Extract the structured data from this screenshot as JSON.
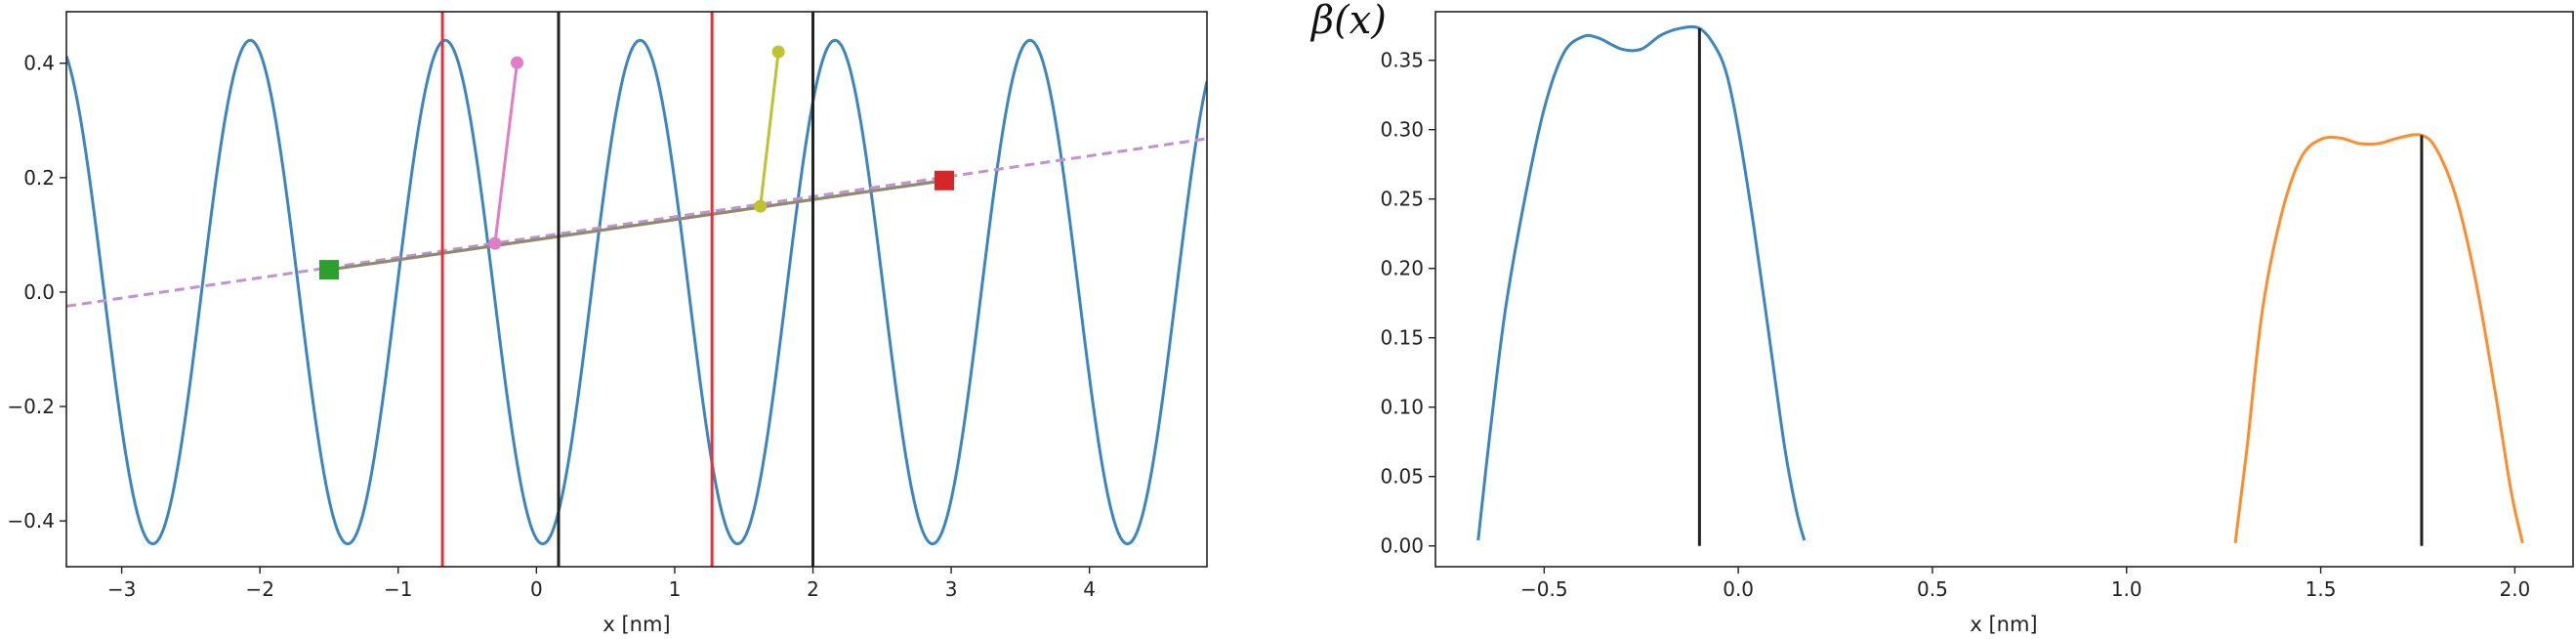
{
  "chart_data": [
    {
      "type": "line",
      "xlabel": "x [nm]",
      "ylabel": "",
      "xlim": [
        -3.4,
        4.85
      ],
      "ylim": [
        -0.48,
        0.49
      ],
      "xticks": [
        -3,
        -2,
        -1,
        0,
        1,
        2,
        3,
        4
      ],
      "yticks": [
        -0.4,
        -0.2,
        0.0,
        0.2,
        0.4
      ],
      "ytick_labels": [
        "−0.4",
        "−0.2",
        "0.0",
        "0.2",
        "0.4"
      ],
      "grid": false,
      "colors": {
        "potential": "#3b86c0",
        "line": "#c58fd6",
        "chord": "#8c8c6f",
        "pink": "#e27cc6",
        "olive": "#bfc22c",
        "start": "#2ca02c",
        "end": "#d62728",
        "red_vline": "#e8303a",
        "black_vline": "#222222"
      },
      "potential": {
        "amplitude": 0.44,
        "period": 1.41,
        "peak_x": 0.75
      },
      "dashed_line": {
        "slope": 0.0355,
        "intercept": 0.096
      },
      "start_marker": {
        "x": -1.5,
        "y": 0.039
      },
      "end_marker": {
        "x": 2.95,
        "y": 0.195
      },
      "red_vlines": [
        -0.68,
        1.27
      ],
      "black_vlines": [
        0.16,
        2.0
      ],
      "segments": [
        {
          "name": "pink",
          "points": [
            [
              -0.3,
              0.085
            ],
            [
              -0.14,
              0.401
            ]
          ]
        },
        {
          "name": "olive",
          "points": [
            [
              1.62,
              0.15
            ],
            [
              1.75,
              0.42
            ]
          ]
        }
      ]
    },
    {
      "type": "line",
      "title": "β(x)",
      "xlabel": "x [nm]",
      "ylabel": "",
      "xlim": [
        -0.78,
        2.15
      ],
      "ylim": [
        -0.015,
        0.385
      ],
      "xticks": [
        -0.5,
        0.0,
        0.5,
        1.0,
        1.5,
        2.0
      ],
      "xtick_labels": [
        "−0.5",
        "0.0",
        "0.5",
        "1.0",
        "1.5",
        "2.0"
      ],
      "yticks": [
        0.0,
        0.05,
        0.1,
        0.15,
        0.2,
        0.25,
        0.3,
        0.35
      ],
      "ytick_labels": [
        "0.00",
        "0.05",
        "0.10",
        "0.15",
        "0.20",
        "0.25",
        "0.30",
        "0.35"
      ],
      "grid": false,
      "series": [
        {
          "color": "#3b86c0",
          "x": [
            -0.67,
            -0.64,
            -0.6,
            -0.55,
            -0.5,
            -0.45,
            -0.4,
            -0.36,
            -0.3,
            -0.25,
            -0.2,
            -0.15,
            -0.1,
            -0.06,
            -0.03,
            0.0,
            0.04,
            0.08,
            0.12,
            0.15,
            0.17
          ],
          "y": [
            0.004,
            0.08,
            0.17,
            0.25,
            0.315,
            0.355,
            0.367,
            0.366,
            0.358,
            0.358,
            0.368,
            0.373,
            0.373,
            0.36,
            0.34,
            0.3,
            0.23,
            0.15,
            0.07,
            0.025,
            0.004
          ]
        },
        {
          "color": "#ff8c2a",
          "x": [
            1.28,
            1.31,
            1.35,
            1.4,
            1.45,
            1.5,
            1.55,
            1.6,
            1.65,
            1.7,
            1.76,
            1.8,
            1.85,
            1.9,
            1.95,
            1.99,
            2.02
          ],
          "y": [
            0.002,
            0.07,
            0.17,
            0.24,
            0.28,
            0.293,
            0.294,
            0.29,
            0.29,
            0.294,
            0.296,
            0.285,
            0.25,
            0.19,
            0.11,
            0.04,
            0.002
          ]
        }
      ],
      "vlines": [
        {
          "x": -0.1,
          "ymax": 0.373
        },
        {
          "x": 1.76,
          "ymax": 0.296
        }
      ]
    }
  ]
}
